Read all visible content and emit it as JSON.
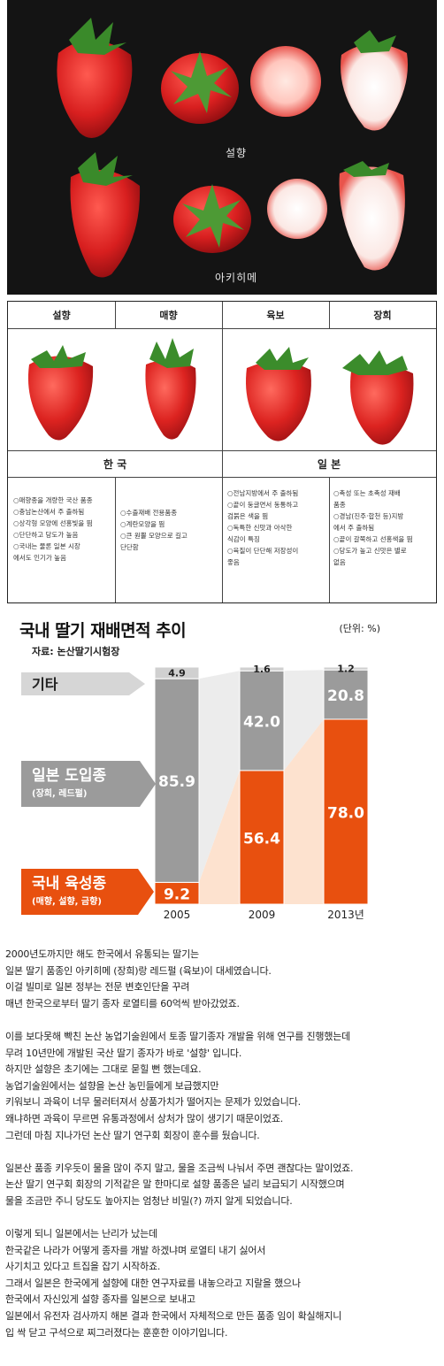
{
  "photo": {
    "label_top": "설향",
    "label_bottom": "아키히메"
  },
  "comparison": {
    "varieties": [
      "설향",
      "매향",
      "육보",
      "장희"
    ],
    "sections": [
      "한 국",
      "일 본"
    ],
    "notes": {
      "seolhyang": [
        "○매향종을 개량한 국산 품종",
        "○충남논산에서 주 출하됨",
        "○상각형 모양에 선홍빛을 띔",
        "○단단하고 당도가 높음",
        "○국내는 물론 일본 시장",
        "  에서도 인기가 높음"
      ],
      "maehyang": [
        "○수출재배 전용품종",
        "○계란모양을 띔",
        "○큰 원뿔 모양으로 길고",
        "  단단함"
      ],
      "yukbo": [
        "○전남지방에서 주 출하됨",
        "○끝이 둥글면서 동통하고",
        "  검붉은 색을 띔",
        "○독특한 신맛과 아삭한",
        "  식감이 특징",
        "○육질이 단단해 저장성이",
        "  좋음"
      ],
      "janghui": [
        "○촉성 또는 초촉성 재배",
        "  품종",
        "○경남(진주·합천 등)지방",
        "  에서 주 출하됨",
        "○끝이 갈쭉하고 선홍색을 띔",
        "○당도가 높고 신맛은 별로",
        "  없음"
      ]
    }
  },
  "chart_data": {
    "type": "bar",
    "stacked": true,
    "title": "국내 딸기 재배면적 추이",
    "source": "자료: 논산딸기시험장",
    "unit": "(단위: %)",
    "categories": [
      "2005",
      "2009",
      "2013년"
    ],
    "series": [
      {
        "name": "국내 육성종",
        "sub": "(매향, 설향, 금향)",
        "values": [
          9.2,
          56.4,
          78.0
        ],
        "color": "#e8500f"
      },
      {
        "name": "일본 도입종",
        "sub": "(장희, 레드펄)",
        "values": [
          85.9,
          42.0,
          20.8
        ],
        "color": "#9b9b9b"
      },
      {
        "name": "기타",
        "sub": "",
        "values": [
          4.9,
          1.6,
          1.2
        ],
        "color": "#d0d0d0"
      }
    ],
    "value_labels": [
      [
        "9.2",
        "85.9",
        "4.9"
      ],
      [
        "56.4",
        "42.0",
        "1.6"
      ],
      [
        "78.0",
        "20.8",
        "1.2"
      ]
    ],
    "ylim": [
      0,
      100
    ]
  },
  "body": {
    "paragraphs": [
      [
        "2000년도까지만 해도 한국에서 유통되는 딸기는",
        "일본 딸기 품종인 아키히메 (장희)랑 레드펄 (육보)이 대세였습니다.",
        "이걸 빌미로 일본 정부는 전문 변호인단을 꾸려",
        "매년 한국으로부터 딸기 종자 로열티를 60억씩 받아갔었죠."
      ],
      [
        "이를 보다못해 빡친 논산 농업기술원에서 토종 딸기종자 개발을 위해 연구를 진행했는데",
        "무려 10년만에 개발된 국산 딸기 종자가 바로 '설향' 입니다.",
        "하지만 설향은 초기에는 그대로 묻힐 뻔 했는데요.",
        "농업기술원에서는 설향을 논산 농민들에게 보급했지만",
        "키워보니 과육이 너무 물러터져서 상품가치가 떨어지는 문제가 있었습니다.",
        "왜냐하면 과육이 무르면 유통과정에서 상처가 많이 생기기 때문이었죠.",
        "그런데 마침 지나가던 논산 딸기 연구회 회장이 훈수를 뒀습니다."
      ],
      [
        "일본산 품종 키우듯이 물을 많이 주지 말고, 물을 조금씩 나눠서 주면 괜찮다는 말이었죠.",
        "논산 딸기 연구회 회장의 기적같은 말 한마디로 설향 품종은 널리 보급되기 시작했으며",
        "물을 조금만 주니 당도도 높아지는 엄청난 비밀(?) 까지 알게 되었습니다."
      ],
      [
        "이렇게 되니 일본에서는 난리가 났는데",
        "한국같은 나라가 어떻게 종자를 개발 하겠냐며 로열티 내기 싫어서",
        "사기치고 있다고 트집을 잡기 시작하죠.",
        "그래서 일본은 한국에게 설향에 대한 연구자료를 내놓으라고 지랄을 했으나",
        "한국에서 자신있게 설향 종자를 일본으로 보내고",
        "일본에서 유전자 검사까지 해본 결과 한국에서 자체적으로 만든 품종 임이 확실해지니",
        "입 싹 닫고 구석으로 찌그러졌다는 훈훈한 이야기입니다."
      ]
    ]
  }
}
